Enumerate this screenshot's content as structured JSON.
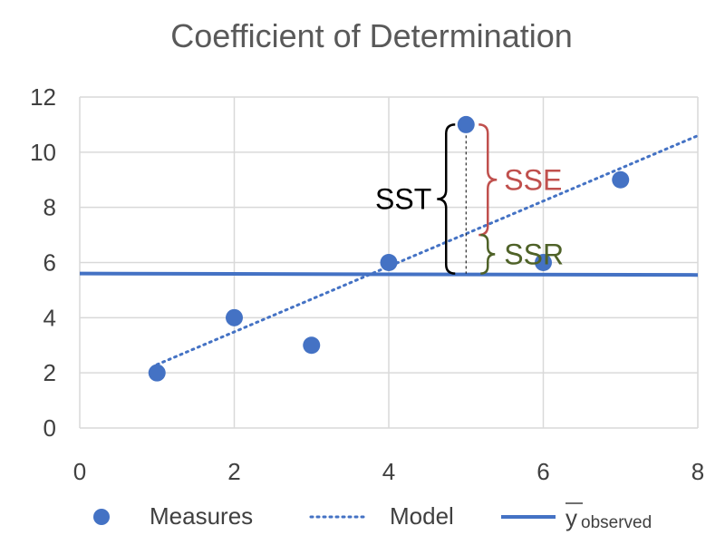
{
  "chart_data": {
    "type": "scatter",
    "title": "Coefficient of Determination",
    "xlabel": "",
    "ylabel": "",
    "xlim": [
      0,
      8
    ],
    "ylim": [
      0,
      12
    ],
    "x_ticks": [
      "0",
      "2",
      "4",
      "6",
      "8"
    ],
    "y_ticks": [
      "0",
      "2",
      "4",
      "6",
      "8",
      "10",
      "12"
    ],
    "grid": true,
    "series": [
      {
        "name": "Measures",
        "kind": "scatter",
        "color": "#4472C4",
        "points": [
          [
            1,
            2
          ],
          [
            2,
            4
          ],
          [
            3,
            3
          ],
          [
            4,
            6
          ],
          [
            5,
            11
          ],
          [
            6,
            6
          ],
          [
            7,
            9
          ]
        ]
      },
      {
        "name": "Model",
        "kind": "dotted-line",
        "color": "#4472C4",
        "points": [
          [
            1,
            2.3
          ],
          [
            8,
            10.6
          ]
        ]
      },
      {
        "name_main": "y",
        "name_sub": "observed",
        "kind": "line",
        "color": "#4472C4",
        "points": [
          [
            0,
            5.6
          ],
          [
            8,
            5.55
          ]
        ]
      }
    ],
    "annotations": {
      "sst": {
        "label": "SST",
        "color": "#000000",
        "x": 5,
        "y_from": 5.6,
        "y_to": 11
      },
      "sse": {
        "label": "SSE",
        "color": "#C0504D",
        "x": 5,
        "y_from": 7.0,
        "y_to": 11
      },
      "ssr": {
        "label": "SSR",
        "color": "#4F6228",
        "x": 5,
        "y_from": 5.6,
        "y_to": 7.0
      }
    },
    "legend_position": "bottom"
  }
}
